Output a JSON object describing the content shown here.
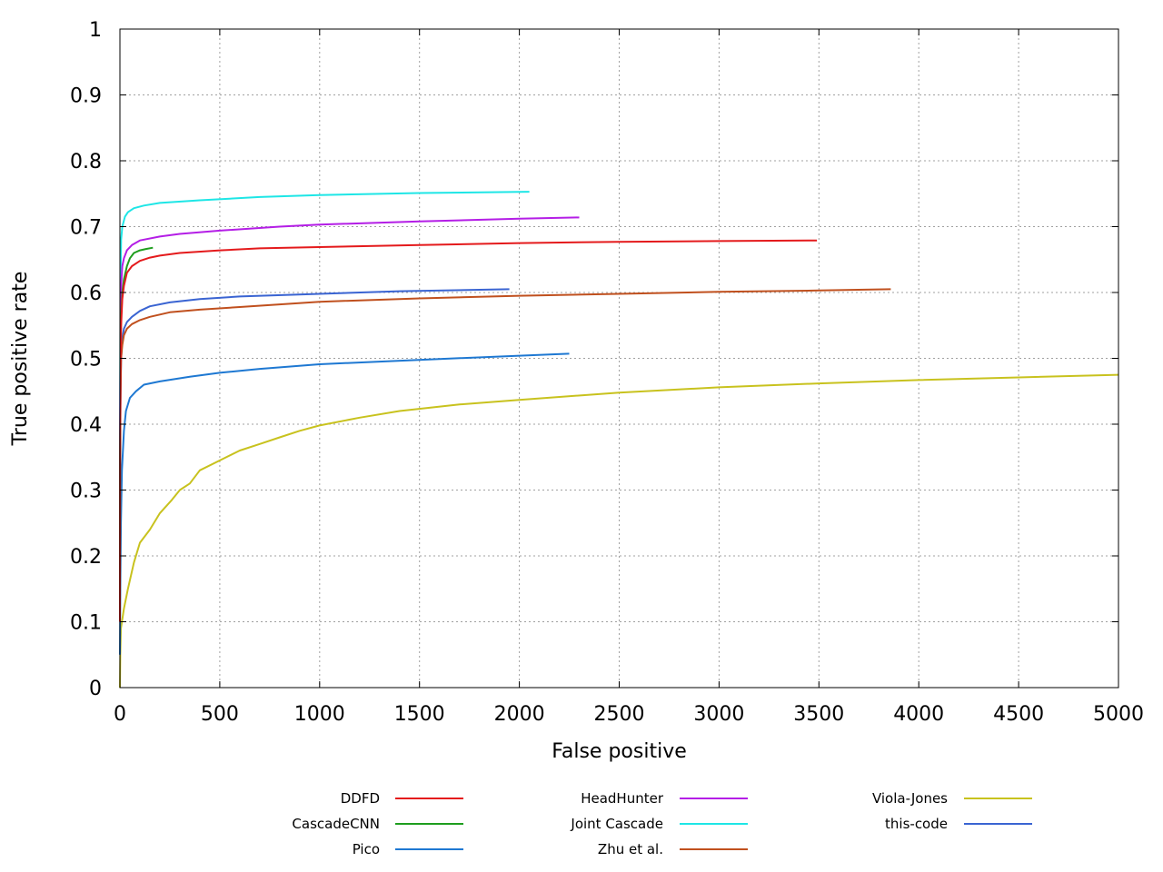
{
  "chart_data": {
    "type": "line",
    "title": "",
    "xlabel": "False positive",
    "ylabel": "True positive rate",
    "xlim": [
      0,
      5000
    ],
    "ylim": [
      0,
      1
    ],
    "grid": true,
    "legend_position": "bottom",
    "x_ticks": [
      "0",
      "500",
      "1000",
      "1500",
      "2000",
      "2500",
      "3000",
      "3500",
      "4000",
      "4500",
      "5000"
    ],
    "y_ticks": [
      "0",
      "0.1",
      "0.2",
      "0.3",
      "0.4",
      "0.5",
      "0.6",
      "0.7",
      "0.8",
      "0.9",
      "1"
    ],
    "series": [
      {
        "name": "DDFD",
        "color": "#e41a1c",
        "points": [
          [
            0,
            0.1
          ],
          [
            1,
            0.35
          ],
          [
            3,
            0.48
          ],
          [
            6,
            0.55
          ],
          [
            12,
            0.59
          ],
          [
            20,
            0.61
          ],
          [
            35,
            0.63
          ],
          [
            60,
            0.64
          ],
          [
            100,
            0.648
          ],
          [
            150,
            0.653
          ],
          [
            200,
            0.656
          ],
          [
            300,
            0.66
          ],
          [
            500,
            0.664
          ],
          [
            700,
            0.667
          ],
          [
            1000,
            0.669
          ],
          [
            1500,
            0.672
          ],
          [
            2000,
            0.675
          ],
          [
            2500,
            0.677
          ],
          [
            3000,
            0.678
          ],
          [
            3490,
            0.679
          ]
        ]
      },
      {
        "name": "CascadeCNN",
        "color": "#1e9e1e",
        "points": [
          [
            0,
            0.1
          ],
          [
            1,
            0.35
          ],
          [
            3,
            0.48
          ],
          [
            6,
            0.56
          ],
          [
            12,
            0.6
          ],
          [
            20,
            0.62
          ],
          [
            35,
            0.64
          ],
          [
            50,
            0.652
          ],
          [
            70,
            0.66
          ],
          [
            100,
            0.664
          ],
          [
            130,
            0.666
          ],
          [
            165,
            0.668
          ]
        ]
      },
      {
        "name": "Pico",
        "color": "#1e78d2",
        "points": [
          [
            0,
            0.05
          ],
          [
            2,
            0.15
          ],
          [
            5,
            0.25
          ],
          [
            10,
            0.33
          ],
          [
            20,
            0.39
          ],
          [
            30,
            0.42
          ],
          [
            50,
            0.44
          ],
          [
            80,
            0.45
          ],
          [
            120,
            0.46
          ],
          [
            200,
            0.465
          ],
          [
            350,
            0.472
          ],
          [
            500,
            0.478
          ],
          [
            700,
            0.484
          ],
          [
            1000,
            0.491
          ],
          [
            1300,
            0.495
          ],
          [
            1600,
            0.499
          ],
          [
            2000,
            0.504
          ],
          [
            2250,
            0.507
          ]
        ]
      },
      {
        "name": "HeadHunter",
        "color": "#b41ee6",
        "points": [
          [
            0,
            0.12
          ],
          [
            1,
            0.4
          ],
          [
            3,
            0.55
          ],
          [
            6,
            0.61
          ],
          [
            12,
            0.64
          ],
          [
            20,
            0.652
          ],
          [
            35,
            0.664
          ],
          [
            60,
            0.672
          ],
          [
            100,
            0.679
          ],
          [
            200,
            0.685
          ],
          [
            300,
            0.689
          ],
          [
            500,
            0.694
          ],
          [
            800,
            0.7
          ],
          [
            1000,
            0.703
          ],
          [
            1500,
            0.708
          ],
          [
            2000,
            0.712
          ],
          [
            2300,
            0.714
          ]
        ]
      },
      {
        "name": "Joint Cascade",
        "color": "#1ee6e6",
        "points": [
          [
            0,
            0.12
          ],
          [
            1,
            0.45
          ],
          [
            3,
            0.62
          ],
          [
            6,
            0.68
          ],
          [
            12,
            0.7
          ],
          [
            25,
            0.715
          ],
          [
            40,
            0.722
          ],
          [
            70,
            0.728
          ],
          [
            120,
            0.732
          ],
          [
            200,
            0.736
          ],
          [
            400,
            0.74
          ],
          [
            700,
            0.745
          ],
          [
            1000,
            0.748
          ],
          [
            1500,
            0.751
          ],
          [
            2050,
            0.753
          ]
        ]
      },
      {
        "name": "Zhu et al.",
        "color": "#c0501e",
        "points": [
          [
            0,
            0.1
          ],
          [
            1,
            0.35
          ],
          [
            3,
            0.45
          ],
          [
            6,
            0.5
          ],
          [
            12,
            0.52
          ],
          [
            20,
            0.535
          ],
          [
            35,
            0.545
          ],
          [
            60,
            0.552
          ],
          [
            100,
            0.558
          ],
          [
            150,
            0.563
          ],
          [
            250,
            0.57
          ],
          [
            400,
            0.574
          ],
          [
            600,
            0.578
          ],
          [
            1000,
            0.586
          ],
          [
            1500,
            0.591
          ],
          [
            2000,
            0.595
          ],
          [
            2500,
            0.598
          ],
          [
            3000,
            0.601
          ],
          [
            3500,
            0.603
          ],
          [
            3860,
            0.605
          ]
        ]
      },
      {
        "name": "Viola-Jones",
        "color": "#c8c21e",
        "points": [
          [
            0,
            0.0
          ],
          [
            2,
            0.05
          ],
          [
            5,
            0.09
          ],
          [
            20,
            0.12
          ],
          [
            40,
            0.15
          ],
          [
            70,
            0.19
          ],
          [
            100,
            0.22
          ],
          [
            150,
            0.24
          ],
          [
            200,
            0.265
          ],
          [
            260,
            0.285
          ],
          [
            300,
            0.3
          ],
          [
            350,
            0.31
          ],
          [
            400,
            0.33
          ],
          [
            500,
            0.345
          ],
          [
            600,
            0.36
          ],
          [
            700,
            0.37
          ],
          [
            800,
            0.38
          ],
          [
            900,
            0.39
          ],
          [
            1000,
            0.398
          ],
          [
            1200,
            0.41
          ],
          [
            1400,
            0.42
          ],
          [
            1700,
            0.43
          ],
          [
            2000,
            0.437
          ],
          [
            2500,
            0.448
          ],
          [
            3000,
            0.456
          ],
          [
            3500,
            0.462
          ],
          [
            4000,
            0.467
          ],
          [
            4500,
            0.471
          ],
          [
            5000,
            0.475
          ]
        ]
      },
      {
        "name": "this-code",
        "color": "#3a64d2",
        "points": [
          [
            0,
            0.1
          ],
          [
            1,
            0.35
          ],
          [
            3,
            0.45
          ],
          [
            6,
            0.5
          ],
          [
            12,
            0.53
          ],
          [
            20,
            0.545
          ],
          [
            35,
            0.555
          ],
          [
            60,
            0.563
          ],
          [
            100,
            0.572
          ],
          [
            150,
            0.579
          ],
          [
            250,
            0.585
          ],
          [
            400,
            0.59
          ],
          [
            600,
            0.594
          ],
          [
            1000,
            0.598
          ],
          [
            1400,
            0.602
          ],
          [
            1950,
            0.605
          ]
        ]
      }
    ]
  }
}
